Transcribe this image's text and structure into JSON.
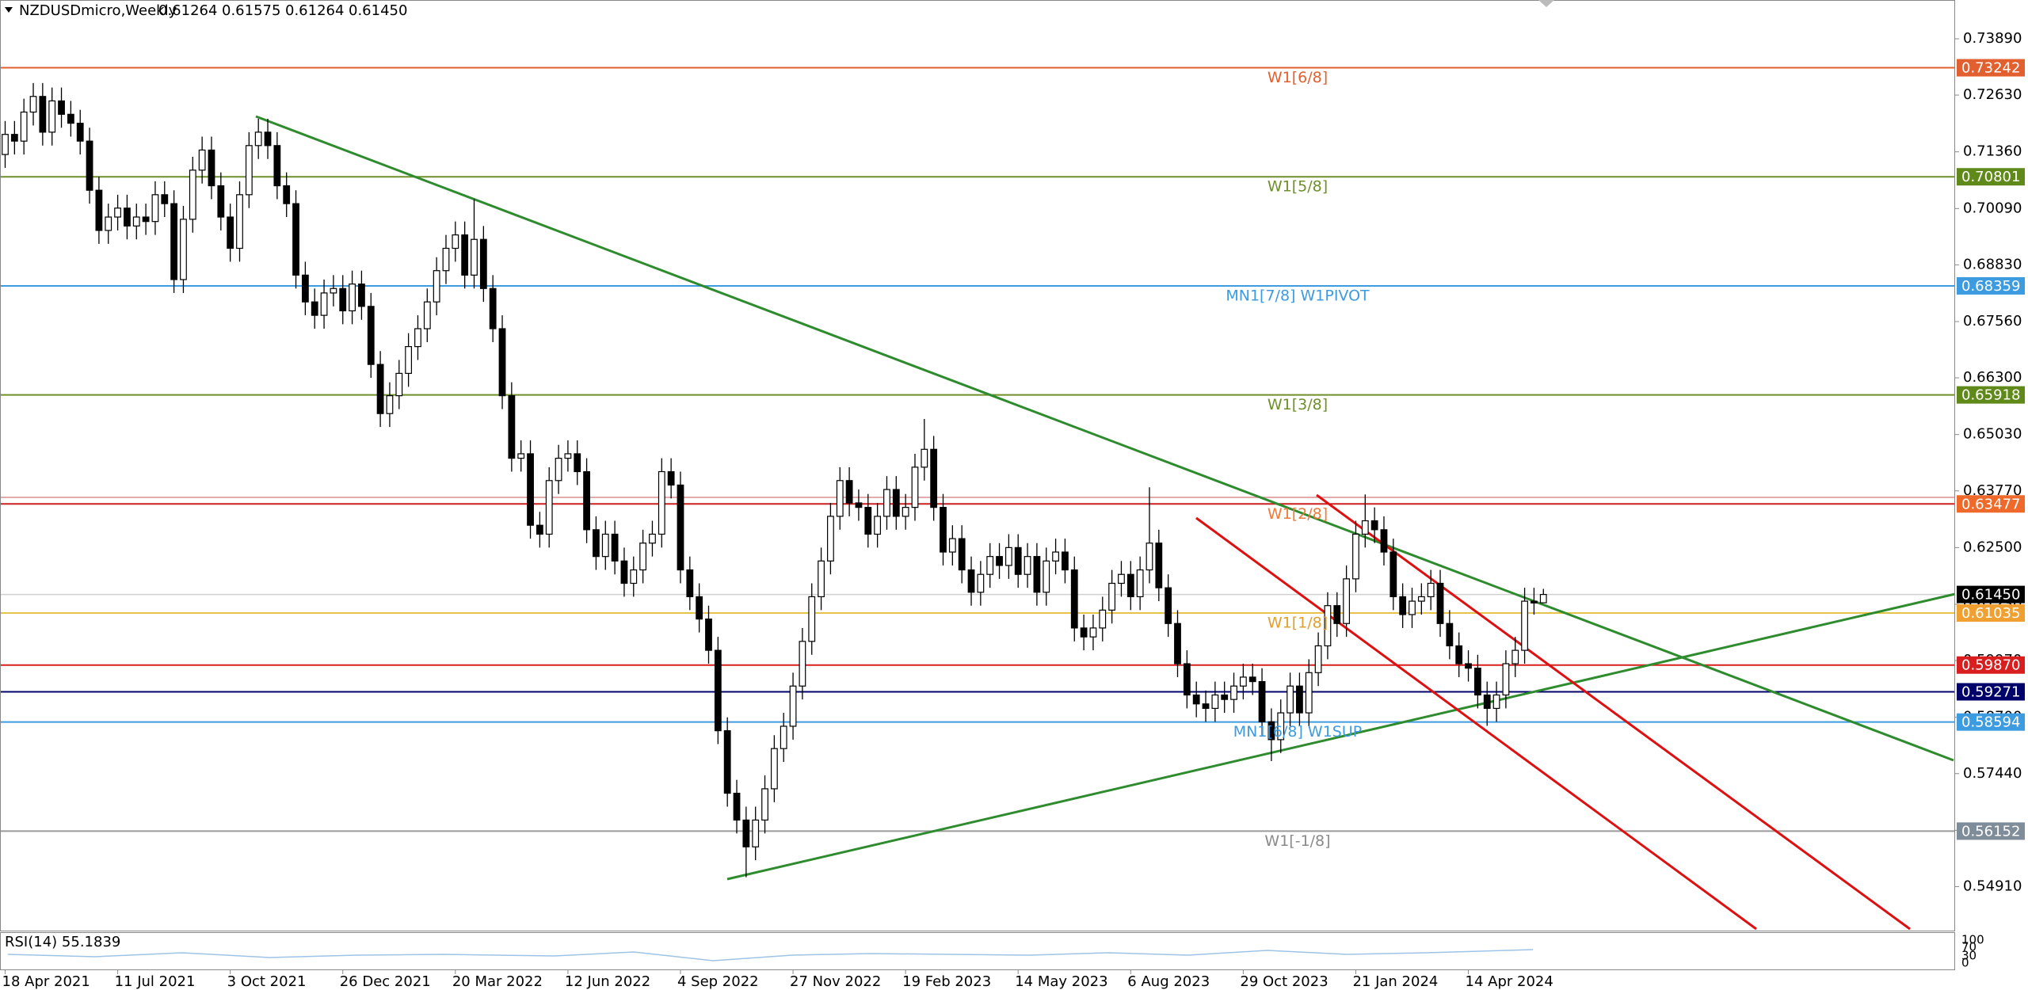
{
  "header": {
    "symbol": "NZDUSDmicro,Weekly",
    "ohlc": [
      "0.61264",
      "0.61575",
      "0.61264",
      "0.61450"
    ]
  },
  "chart_data": {
    "type": "candlestick",
    "ylim": [
      0.53925,
      0.74759
    ],
    "yticks": [
      {
        "value": 0.7389,
        "label": "0.73890"
      },
      {
        "value": 0.7263,
        "label": "0.72630"
      },
      {
        "value": 0.7136,
        "label": "0.71360"
      },
      {
        "value": 0.7009,
        "label": "0.70090"
      },
      {
        "value": 0.6883,
        "label": "0.68830"
      },
      {
        "value": 0.6756,
        "label": "0.67560"
      },
      {
        "value": 0.663,
        "label": "0.66300"
      },
      {
        "value": 0.6503,
        "label": "0.65030"
      },
      {
        "value": 0.6377,
        "label": "0.63770"
      },
      {
        "value": 0.625,
        "label": "0.62500"
      },
      {
        "value": 0.6123,
        "label": "0.61230"
      },
      {
        "value": 0.5997,
        "label": "0.59970"
      },
      {
        "value": 0.587,
        "label": "0.58700"
      },
      {
        "value": 0.5744,
        "label": "0.57440"
      },
      {
        "value": 0.5617,
        "label": "0.56170"
      },
      {
        "value": 0.5491,
        "label": "0.54910"
      }
    ],
    "categories": [
      "18 Apr 2021",
      null,
      null,
      null,
      null,
      null,
      null,
      null,
      null,
      null,
      null,
      null,
      "11 Jul 2021",
      null,
      null,
      null,
      null,
      null,
      null,
      null,
      null,
      null,
      null,
      null,
      "3 Oct 2021",
      null,
      null,
      null,
      null,
      null,
      null,
      null,
      null,
      null,
      null,
      null,
      "26 Dec 2021",
      null,
      null,
      null,
      null,
      null,
      null,
      null,
      null,
      null,
      null,
      null,
      "20 Mar 2022",
      null,
      null,
      null,
      null,
      null,
      null,
      null,
      null,
      null,
      null,
      null,
      "12 Jun 2022",
      null,
      null,
      null,
      null,
      null,
      null,
      null,
      null,
      null,
      null,
      null,
      "4 Sep 2022",
      null,
      null,
      null,
      null,
      null,
      null,
      null,
      null,
      null,
      null,
      null,
      "27 Nov 2022",
      null,
      null,
      null,
      null,
      null,
      null,
      null,
      null,
      null,
      null,
      null,
      "19 Feb 2023",
      null,
      null,
      null,
      null,
      null,
      null,
      null,
      null,
      null,
      null,
      null,
      "14 May 2023",
      null,
      null,
      null,
      null,
      null,
      null,
      null,
      null,
      null,
      null,
      null,
      "6 Aug 2023",
      null,
      null,
      null,
      null,
      null,
      null,
      null,
      null,
      null,
      null,
      null,
      "29 Oct 2023",
      null,
      null,
      null,
      null,
      null,
      null,
      null,
      null,
      null,
      null,
      null,
      "21 Jan 2024",
      null,
      null,
      null,
      null,
      null,
      null,
      null,
      null,
      null,
      null,
      null,
      "14 Apr 2024",
      null,
      null,
      null,
      null,
      null,
      null,
      null,
      null
    ],
    "open": [
      0.713,
      0.7175,
      0.716,
      0.7225,
      0.726,
      0.718,
      0.725,
      0.722,
      0.72,
      0.716,
      0.705,
      0.696,
      0.699,
      0.701,
      0.697,
      0.699,
      0.698,
      0.704,
      0.702,
      0.685,
      0.6985,
      0.7095,
      0.714,
      0.706,
      0.699,
      0.692,
      0.704,
      0.715,
      0.718,
      0.715,
      0.706,
      0.702,
      0.686,
      0.68,
      0.677,
      0.682,
      0.683,
      0.678,
      0.684,
      0.679,
      0.666,
      0.655,
      0.659,
      0.664,
      0.67,
      0.674,
      0.68,
      0.687,
      0.692,
      0.695,
      0.686,
      0.694,
      0.683,
      0.674,
      0.659,
      0.645,
      0.646,
      0.63,
      0.628,
      0.64,
      0.645,
      0.646,
      0.642,
      0.629,
      0.623,
      0.628,
      0.622,
      0.617,
      0.62,
      0.626,
      0.628,
      0.642,
      0.639,
      0.62,
      0.614,
      0.609,
      0.602,
      0.584,
      0.57,
      0.564,
      0.558,
      0.564,
      0.571,
      0.58,
      0.585,
      0.594,
      0.604,
      0.614,
      0.622,
      0.632,
      0.64,
      0.635,
      0.634,
      0.628,
      0.632,
      0.638,
      0.632,
      0.634,
      0.643,
      0.647,
      0.634,
      0.624,
      0.627,
      0.62,
      0.615,
      0.619,
      0.623,
      0.621,
      0.625,
      0.619,
      0.623,
      0.615,
      0.622,
      0.624,
      0.62,
      0.607,
      0.605,
      0.607,
      0.611,
      0.617,
      0.619,
      0.614,
      0.62,
      0.626,
      0.616,
      0.608,
      0.599,
      0.592,
      0.59,
      0.589,
      0.592,
      0.591,
      0.594,
      0.596,
      0.595,
      0.586,
      0.582,
      0.588,
      0.594,
      0.588,
      0.597,
      0.603,
      0.612,
      0.608,
      0.618,
      0.628,
      0.631,
      0.629,
      0.624,
      0.614,
      0.61,
      0.613,
      0.614,
      0.617,
      0.608,
      0.603,
      0.599,
      0.598,
      0.592,
      0.589,
      0.592,
      0.599,
      0.602,
      0.613,
      0.61264
    ],
    "high": [
      0.7205,
      0.7205,
      0.7255,
      0.729,
      0.729,
      0.728,
      0.728,
      0.725,
      0.723,
      0.719,
      0.708,
      0.702,
      0.704,
      0.704,
      0.702,
      0.702,
      0.707,
      0.707,
      0.705,
      0.7015,
      0.7125,
      0.717,
      0.717,
      0.709,
      0.702,
      0.707,
      0.718,
      0.721,
      0.721,
      0.718,
      0.709,
      0.705,
      0.689,
      0.683,
      0.685,
      0.686,
      0.686,
      0.687,
      0.687,
      0.682,
      0.669,
      0.662,
      0.667,
      0.673,
      0.677,
      0.683,
      0.69,
      0.695,
      0.698,
      0.698,
      0.703,
      0.697,
      0.686,
      0.677,
      0.662,
      0.649,
      0.649,
      0.633,
      0.643,
      0.648,
      0.649,
      0.649,
      0.645,
      0.632,
      0.631,
      0.631,
      0.625,
      0.623,
      0.629,
      0.631,
      0.645,
      0.645,
      0.642,
      0.623,
      0.617,
      0.612,
      0.605,
      0.587,
      0.573,
      0.567,
      0.567,
      0.574,
      0.583,
      0.588,
      0.597,
      0.607,
      0.617,
      0.625,
      0.635,
      0.643,
      0.643,
      0.638,
      0.637,
      0.635,
      0.641,
      0.641,
      0.637,
      0.646,
      0.6538,
      0.65,
      0.637,
      0.63,
      0.63,
      0.623,
      0.622,
      0.626,
      0.626,
      0.628,
      0.628,
      0.626,
      0.626,
      0.625,
      0.627,
      0.627,
      0.623,
      0.61,
      0.61,
      0.614,
      0.62,
      0.622,
      0.622,
      0.623,
      0.6385,
      0.629,
      0.619,
      0.611,
      0.602,
      0.595,
      0.593,
      0.595,
      0.595,
      0.597,
      0.599,
      0.599,
      0.598,
      0.589,
      0.591,
      0.597,
      0.597,
      0.6,
      0.606,
      0.615,
      0.615,
      0.621,
      0.631,
      0.6369,
      0.634,
      0.632,
      0.627,
      0.617,
      0.616,
      0.617,
      0.62,
      0.62,
      0.611,
      0.606,
      0.602,
      0.601,
      0.595,
      0.595,
      0.602,
      0.605,
      0.616,
      0.616,
      0.61575
    ],
    "low": [
      0.71,
      0.713,
      0.713,
      0.7195,
      0.715,
      0.715,
      0.719,
      0.717,
      0.713,
      0.702,
      0.693,
      0.693,
      0.696,
      0.694,
      0.694,
      0.695,
      0.695,
      0.699,
      0.682,
      0.682,
      0.6955,
      0.7065,
      0.703,
      0.696,
      0.689,
      0.689,
      0.701,
      0.712,
      0.712,
      0.703,
      0.699,
      0.683,
      0.677,
      0.674,
      0.674,
      0.679,
      0.675,
      0.675,
      0.676,
      0.663,
      0.652,
      0.652,
      0.656,
      0.661,
      0.667,
      0.671,
      0.677,
      0.684,
      0.689,
      0.683,
      0.683,
      0.68,
      0.671,
      0.656,
      0.642,
      0.642,
      0.627,
      0.625,
      0.625,
      0.637,
      0.642,
      0.639,
      0.626,
      0.62,
      0.62,
      0.619,
      0.614,
      0.614,
      0.617,
      0.623,
      0.625,
      0.636,
      0.617,
      0.611,
      0.606,
      0.599,
      0.581,
      0.567,
      0.561,
      0.5512,
      0.555,
      0.561,
      0.568,
      0.577,
      0.582,
      0.591,
      0.601,
      0.611,
      0.619,
      0.629,
      0.632,
      0.631,
      0.625,
      0.625,
      0.629,
      0.629,
      0.629,
      0.631,
      0.64,
      0.631,
      0.621,
      0.621,
      0.617,
      0.612,
      0.612,
      0.616,
      0.618,
      0.618,
      0.616,
      0.616,
      0.612,
      0.612,
      0.619,
      0.617,
      0.604,
      0.602,
      0.602,
      0.604,
      0.608,
      0.614,
      0.611,
      0.611,
      0.617,
      0.613,
      0.605,
      0.596,
      0.589,
      0.587,
      0.586,
      0.586,
      0.588,
      0.588,
      0.591,
      0.592,
      0.583,
      0.5772,
      0.579,
      0.585,
      0.585,
      0.585,
      0.594,
      0.6,
      0.605,
      0.605,
      0.615,
      0.625,
      0.626,
      0.621,
      0.611,
      0.607,
      0.607,
      0.61,
      0.611,
      0.605,
      0.6,
      0.596,
      0.595,
      0.589,
      0.5851,
      0.586,
      0.589,
      0.596,
      0.599,
      0.61,
      0.61264
    ],
    "close": [
      0.7175,
      0.716,
      0.7225,
      0.726,
      0.718,
      0.725,
      0.722,
      0.72,
      0.716,
      0.705,
      0.696,
      0.699,
      0.701,
      0.697,
      0.699,
      0.698,
      0.704,
      0.702,
      0.685,
      0.6985,
      0.7095,
      0.714,
      0.706,
      0.699,
      0.692,
      0.704,
      0.715,
      0.718,
      0.715,
      0.706,
      0.702,
      0.686,
      0.68,
      0.677,
      0.682,
      0.683,
      0.678,
      0.684,
      0.679,
      0.666,
      0.655,
      0.659,
      0.664,
      0.67,
      0.674,
      0.68,
      0.687,
      0.692,
      0.695,
      0.686,
      0.694,
      0.683,
      0.674,
      0.659,
      0.645,
      0.646,
      0.63,
      0.628,
      0.64,
      0.645,
      0.646,
      0.642,
      0.629,
      0.623,
      0.628,
      0.622,
      0.617,
      0.62,
      0.626,
      0.628,
      0.642,
      0.639,
      0.62,
      0.614,
      0.609,
      0.602,
      0.584,
      0.57,
      0.564,
      0.558,
      0.564,
      0.571,
      0.58,
      0.585,
      0.594,
      0.604,
      0.614,
      0.622,
      0.632,
      0.64,
      0.635,
      0.634,
      0.628,
      0.632,
      0.638,
      0.632,
      0.634,
      0.643,
      0.647,
      0.634,
      0.624,
      0.627,
      0.62,
      0.615,
      0.619,
      0.623,
      0.621,
      0.625,
      0.619,
      0.623,
      0.615,
      0.622,
      0.624,
      0.62,
      0.607,
      0.605,
      0.607,
      0.611,
      0.617,
      0.619,
      0.614,
      0.62,
      0.626,
      0.616,
      0.608,
      0.599,
      0.592,
      0.59,
      0.589,
      0.592,
      0.591,
      0.594,
      0.596,
      0.595,
      0.586,
      0.582,
      0.588,
      0.594,
      0.588,
      0.597,
      0.603,
      0.612,
      0.608,
      0.618,
      0.628,
      0.631,
      0.629,
      0.624,
      0.614,
      0.61,
      0.613,
      0.614,
      0.617,
      0.608,
      0.603,
      0.599,
      0.598,
      0.592,
      0.589,
      0.592,
      0.599,
      0.602,
      0.613,
      0.6126,
      0.6145
    ],
    "levels": [
      {
        "name": "W1[6/8]",
        "value": 0.73242,
        "label": "0.73242",
        "color": "#e2602f",
        "box": "#e2602f"
      },
      {
        "name": "W1[5/8]",
        "value": 0.70801,
        "label": "0.70801",
        "color": "#6f8f2a",
        "box": "#5f8a1a"
      },
      {
        "name": "MN1[7/8] W1PIVOT",
        "value": 0.68359,
        "label": "0.68359",
        "color": "#3d9be0",
        "box": "#3d9be0"
      },
      {
        "name": "W1[3/8]",
        "value": 0.65918,
        "label": "0.65918",
        "color": "#6f8f2a",
        "box": "#5f8a1a"
      },
      {
        "name": "W1[2/8]",
        "value": 0.63477,
        "label": "0.63477",
        "color": "#cc2020",
        "box": "#ef6a2a",
        "text": "#ef7a3a"
      },
      {
        "name": "W1[1/8]",
        "value": 0.61035,
        "label": "0.61035",
        "color": "#e6c34a",
        "box": "#f0a030",
        "text": "#e0a030"
      },
      {
        "value": 0.5987,
        "label": "0.59870",
        "color": "#d81e1e",
        "box": "#d81e1e"
      },
      {
        "value": 0.59271,
        "label": "0.59271",
        "color": "#00006b",
        "box": "#00006b"
      },
      {
        "name": "MN1[6/8] W1SUP",
        "value": 0.58594,
        "label": "0.58594",
        "color": "#3d9be0",
        "box": "#3d9be0"
      },
      {
        "name": "W1[-1/8]",
        "value": 0.56152,
        "label": "0.56152",
        "color": "#9a9a9a",
        "box": "#7f8c99",
        "text": "#8a8a8a"
      }
    ],
    "last_price": {
      "value": 0.6145,
      "label": "0.61450"
    }
  },
  "rsi": {
    "title": "RSI(14) 55.1839",
    "ticks": [
      "100",
      "70",
      "30",
      "0"
    ]
  }
}
